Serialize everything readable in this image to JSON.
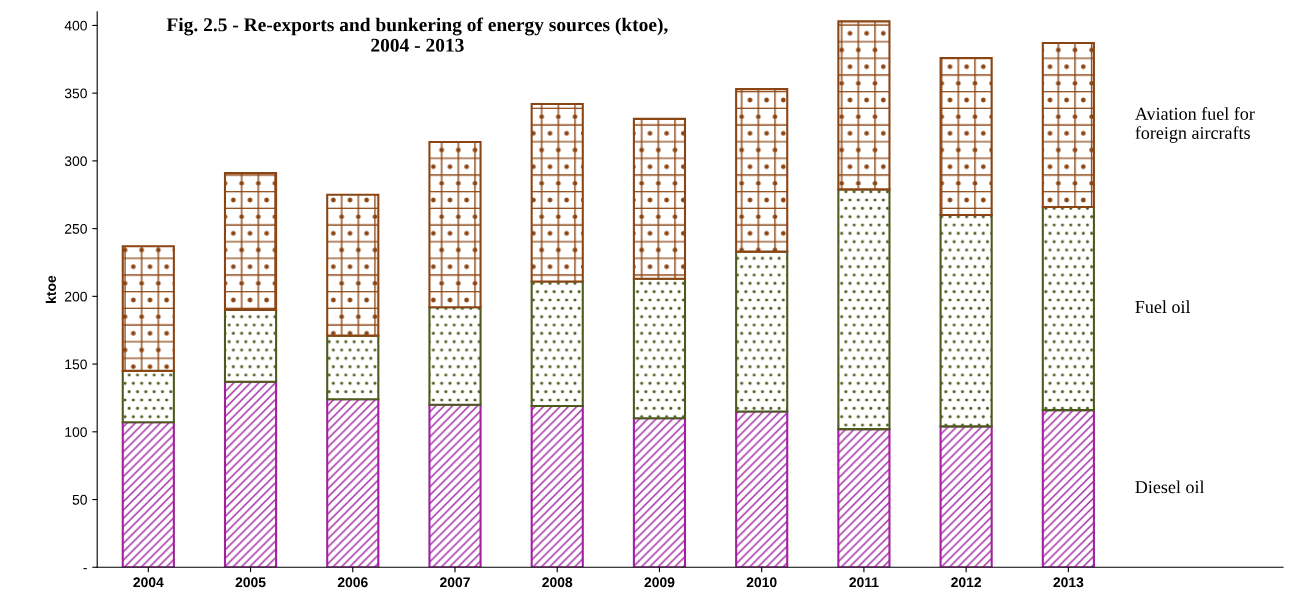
{
  "chart_data": {
    "type": "bar",
    "stacked": true,
    "title": "Fig. 2.5 - Re-exports and bunkering of energy sources (ktoe),\n2004 - 2013",
    "ylabel": "ktoe",
    "categories": [
      "2004",
      "2005",
      "2006",
      "2007",
      "2008",
      "2009",
      "2010",
      "2011",
      "2012",
      "2013"
    ],
    "series": [
      {
        "name": "Diesel oil",
        "color": "#a020a0",
        "values": [
          107,
          137,
          124,
          120,
          119,
          110,
          115,
          102,
          104,
          116
        ]
      },
      {
        "name": "Fuel oil",
        "color": "#4d5a1e",
        "values": [
          38,
          53,
          47,
          72,
          92,
          103,
          118,
          177,
          156,
          150
        ]
      },
      {
        "name": "Aviation fuel for foreign aircrafts",
        "color": "#8b4513",
        "values": [
          92,
          101,
          104,
          122,
          131,
          118,
          120,
          124,
          116,
          121
        ]
      }
    ],
    "ylim": [
      0,
      410
    ],
    "yticks": [
      {
        "value": 0,
        "label": "-"
      },
      50,
      100,
      150,
      200,
      250,
      300,
      350,
      400
    ],
    "grid": false,
    "legend": false
  }
}
